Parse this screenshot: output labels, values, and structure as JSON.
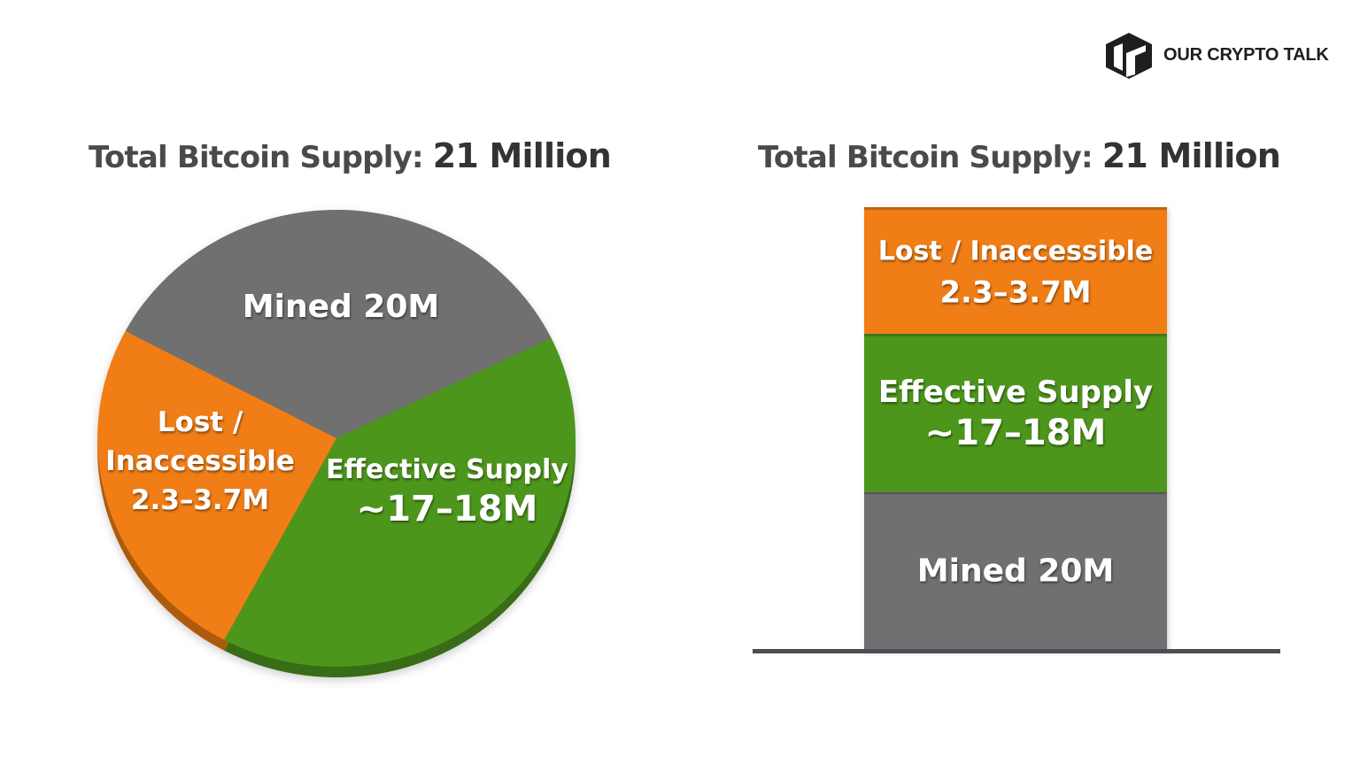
{
  "brand": {
    "name": "OUR CRYPTO TALK",
    "logo_icon": "cube-logo-icon"
  },
  "colors": {
    "mined": "#6f6f6f",
    "lost": "#f07d15",
    "effective": "#4e961e",
    "baseline": "#4a4f55"
  },
  "chart_data": [
    {
      "type": "pie",
      "title": "Total Bitcoin Supply:",
      "title_value": "21 Million",
      "slices": [
        {
          "key": "mined",
          "label": "Mined 20M",
          "label_lines": [
            "Mined 20M"
          ],
          "value": 35
        },
        {
          "key": "effective",
          "label": "Effective Supply ~17–18M",
          "label_lines": [
            "Effective Supply",
            "~17–18M"
          ],
          "value": 40
        },
        {
          "key": "lost",
          "label": "Lost / Inaccessible 2.3–3.7M",
          "label_lines": [
            "Lost /",
            "Inaccessible",
            "2.3–3.7M"
          ],
          "value": 25
        }
      ]
    },
    {
      "type": "bar",
      "stacked": true,
      "title": "Total Bitcoin Supply:",
      "title_value": "21 Million",
      "segments": [
        {
          "key": "mined",
          "label_lines": [
            "Mined 20M"
          ],
          "value": 1
        },
        {
          "key": "effective",
          "label_lines": [
            "Effective Supply",
            "~17–18M"
          ],
          "value": 1
        },
        {
          "key": "lost",
          "label_lines": [
            "Lost / Inaccessible",
            "2.3–3.7M"
          ],
          "value": 0.8
        }
      ]
    }
  ]
}
